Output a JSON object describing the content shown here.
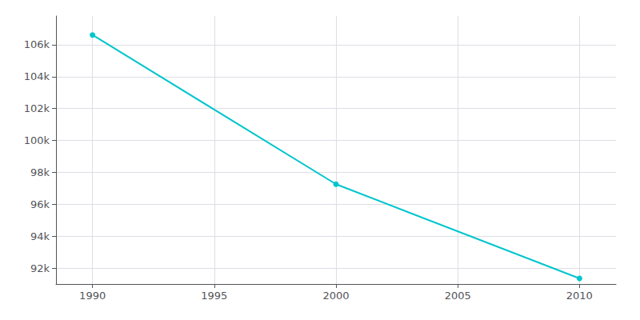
{
  "chart_data": {
    "type": "line",
    "x": [
      1990,
      2000,
      2010
    ],
    "values": [
      106612,
      97255,
      91351
    ],
    "color": "#00C5CD",
    "marker": "circle",
    "xlim": [
      1988.5,
      2011.5
    ],
    "xticks": [
      1990,
      1995,
      2000,
      2005,
      2010
    ],
    "ylim": [
      91000,
      107800
    ],
    "yticks": [
      {
        "value": 92000,
        "label": "92k"
      },
      {
        "value": 94000,
        "label": "94k"
      },
      {
        "value": 96000,
        "label": "96k"
      },
      {
        "value": 98000,
        "label": "98k"
      },
      {
        "value": 100000,
        "label": "100k"
      },
      {
        "value": 102000,
        "label": "102k"
      },
      {
        "value": 104000,
        "label": "104k"
      },
      {
        "value": 106000,
        "label": "106k"
      }
    ],
    "grid": true
  }
}
